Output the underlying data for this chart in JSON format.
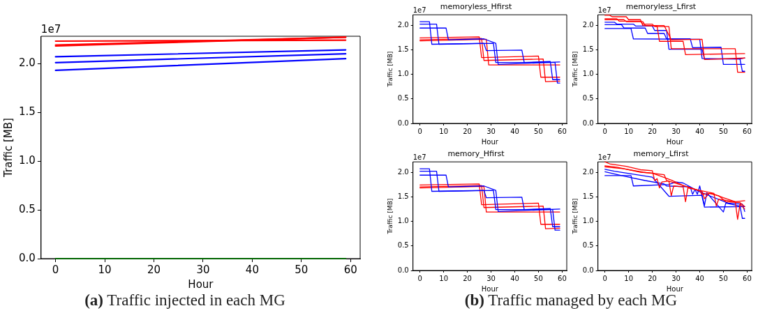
{
  "chart_data": [
    {
      "type": "line",
      "xlabel": "Hour",
      "ylabel": "Traffic [MB]",
      "annotations": [
        "1e7",
        "(a) Traffic injected in each MG"
      ],
      "xlim": [
        -2.95,
        61.95
      ],
      "ylim": [
        0,
        2.28
      ],
      "xticks": [
        0,
        10,
        20,
        30,
        40,
        50,
        60
      ],
      "yticks": [
        {
          "value": 0,
          "label": "0.0"
        },
        {
          "value": 0.5,
          "label": "0.5"
        },
        {
          "value": 1,
          "label": "1.0"
        },
        {
          "value": 1.5,
          "label": "1.5"
        },
        {
          "value": 2,
          "label": "2.0"
        }
      ],
      "x": [
        0,
        59
      ],
      "series": [
        {
          "color": "#ff0000",
          "values": [
            2.23,
            2.24
          ]
        },
        {
          "color": "#ff0000",
          "values": [
            2.19,
            2.27
          ]
        },
        {
          "color": "#ff0000",
          "values": [
            2.18,
            2.27
          ]
        },
        {
          "color": "#0000ff",
          "values": [
            2.07,
            2.14
          ]
        },
        {
          "color": "#0000ff",
          "values": [
            2.01,
            2.1
          ]
        },
        {
          "color": "#0000ff",
          "values": [
            1.93,
            2.05
          ]
        },
        {
          "color": "#006400",
          "values": [
            0,
            0
          ]
        }
      ]
    },
    {
      "type": "line",
      "title": "memoryless_Hfirst",
      "xlabel": "Hour",
      "ylabel": "Traffic [MB]",
      "annotations": [
        "1e7",
        "(b) Traffic managed by each MG"
      ],
      "xlim": [
        -2.95,
        61.95
      ],
      "ylim": [
        0,
        2.21
      ],
      "xticks": [
        0,
        10,
        20,
        30,
        40,
        50,
        60
      ],
      "yticks": [
        {
          "value": 0,
          "label": "0.0"
        },
        {
          "value": 0.5,
          "label": "0.5"
        },
        {
          "value": 1,
          "label": "1.0"
        },
        {
          "value": 1.5,
          "label": "1.5"
        },
        {
          "value": 2,
          "label": "2.0"
        }
      ],
      "series": [
        {
          "color": "#0000ff",
          "x": [
            0,
            4,
            5,
            27,
            28,
            43,
            44,
            55,
            56,
            59
          ],
          "values": [
            2.07,
            2.07,
            1.61,
            1.63,
            1.48,
            1.49,
            1.24,
            1.26,
            0.89,
            0.89
          ]
        },
        {
          "color": "#0000ff",
          "x": [
            0,
            7,
            8,
            31,
            32,
            57,
            58,
            59
          ],
          "values": [
            2.02,
            2.02,
            1.61,
            1.63,
            1.24,
            1.24,
            0.82,
            0.82
          ]
        },
        {
          "color": "#0000ff",
          "x": [
            0,
            11,
            12,
            27,
            32,
            33,
            59
          ],
          "values": [
            1.94,
            1.94,
            1.7,
            1.72,
            1.63,
            1.2,
            1.25
          ]
        },
        {
          "color": "#ff0000",
          "x": [
            0,
            25,
            26,
            50,
            51,
            59
          ],
          "values": [
            1.74,
            1.76,
            1.34,
            1.37,
            0.94,
            0.94
          ]
        },
        {
          "color": "#ff0000",
          "x": [
            0,
            26,
            27,
            52,
            53,
            59
          ],
          "values": [
            1.7,
            1.73,
            1.28,
            1.31,
            0.85,
            0.86
          ]
        },
        {
          "color": "#ff0000",
          "x": [
            0,
            28,
            29,
            59
          ],
          "values": [
            1.68,
            1.71,
            1.19,
            1.19
          ]
        }
      ]
    },
    {
      "type": "line",
      "title": "memoryless_Lfirst",
      "xlabel": "Hour",
      "ylabel": "Traffic [MB]",
      "annotations": [
        "1e7"
      ],
      "xlim": [
        -2.95,
        61.95
      ],
      "ylim": [
        0,
        2.21
      ],
      "xticks": [
        0,
        10,
        20,
        30,
        40,
        50,
        60
      ],
      "yticks": [
        {
          "value": 0,
          "label": "0.0"
        },
        {
          "value": 0.5,
          "label": "0.5"
        },
        {
          "value": 1,
          "label": "1.0"
        },
        {
          "value": 1.5,
          "label": "1.5"
        },
        {
          "value": 2,
          "label": "2.0"
        }
      ],
      "series": [
        {
          "color": "#ff0000",
          "x": [
            0,
            2,
            3,
            9,
            10,
            15,
            16,
            22,
            23,
            33,
            34,
            59
          ],
          "values": [
            2.2,
            2.2,
            2.17,
            2.17,
            2.11,
            2.11,
            1.99,
            1.98,
            1.67,
            1.67,
            1.4,
            1.42
          ]
        },
        {
          "color": "#ff0000",
          "x": [
            0,
            5,
            6,
            15,
            16,
            20,
            21,
            27,
            28,
            55,
            56,
            59
          ],
          "values": [
            2.13,
            2.13,
            2.08,
            2.08,
            2.02,
            2.02,
            1.97,
            1.97,
            1.52,
            1.52,
            1.04,
            1.04
          ]
        },
        {
          "color": "#ff0000",
          "x": [
            0,
            8,
            9,
            16,
            17,
            25,
            28,
            41,
            42,
            59
          ],
          "values": [
            2.11,
            2.11,
            2.07,
            2.07,
            1.99,
            1.99,
            1.7,
            1.71,
            1.3,
            1.33
          ]
        },
        {
          "color": "#0000ff",
          "x": [
            0,
            4,
            5,
            12,
            13,
            20,
            21,
            26,
            27,
            41,
            42,
            57,
            58,
            59
          ],
          "values": [
            2.06,
            2.06,
            2.02,
            2.02,
            1.98,
            1.98,
            1.89,
            1.89,
            1.51,
            1.51,
            1.31,
            1.31,
            1.06,
            1.06
          ]
        },
        {
          "color": "#0000ff",
          "x": [
            0,
            7,
            8,
            17,
            18,
            25,
            26,
            36,
            37,
            49,
            50,
            59
          ],
          "values": [
            2.01,
            2.01,
            1.94,
            1.94,
            1.83,
            1.83,
            1.72,
            1.72,
            1.54,
            1.55,
            1.2,
            1.2
          ]
        },
        {
          "color": "#0000ff",
          "x": [
            0,
            11,
            12,
            40,
            41,
            57,
            59
          ],
          "values": [
            1.93,
            1.93,
            1.72,
            1.71,
            1.32,
            1.31,
            1.33
          ]
        }
      ]
    },
    {
      "type": "line",
      "title": "memory_Hfirst",
      "xlabel": "Hour",
      "ylabel": "Traffic [MB]",
      "annotations": [
        "1e7"
      ],
      "xlim": [
        -2.95,
        61.95
      ],
      "ylim": [
        0,
        2.21
      ],
      "xticks": [
        0,
        10,
        20,
        30,
        40,
        50,
        60
      ],
      "yticks": [
        {
          "value": 0,
          "label": "0.0"
        },
        {
          "value": 0.5,
          "label": "0.5"
        },
        {
          "value": 1,
          "label": "1.0"
        },
        {
          "value": 1.5,
          "label": "1.5"
        },
        {
          "value": 2,
          "label": "2.0"
        }
      ],
      "series": [
        {
          "color": "#0000ff",
          "x": [
            0,
            4,
            5,
            27,
            28,
            43,
            44,
            55,
            56,
            59
          ],
          "values": [
            2.07,
            2.07,
            1.61,
            1.63,
            1.48,
            1.49,
            1.24,
            1.26,
            0.89,
            0.89
          ]
        },
        {
          "color": "#0000ff",
          "x": [
            0,
            7,
            8,
            31,
            32,
            56,
            57,
            59
          ],
          "values": [
            2.02,
            2.02,
            1.61,
            1.63,
            1.24,
            1.24,
            0.82,
            0.82
          ]
        },
        {
          "color": "#0000ff",
          "x": [
            0,
            11,
            12,
            27,
            32,
            33,
            59
          ],
          "values": [
            1.94,
            1.94,
            1.7,
            1.72,
            1.63,
            1.2,
            1.25
          ]
        },
        {
          "color": "#ff0000",
          "x": [
            0,
            25,
            26,
            50,
            51,
            59
          ],
          "values": [
            1.74,
            1.76,
            1.34,
            1.37,
            0.94,
            0.94
          ]
        },
        {
          "color": "#ff0000",
          "x": [
            0,
            26,
            27,
            52,
            53,
            59
          ],
          "values": [
            1.7,
            1.73,
            1.28,
            1.31,
            0.85,
            0.86
          ]
        },
        {
          "color": "#ff0000",
          "x": [
            0,
            27,
            28,
            59
          ],
          "values": [
            1.68,
            1.71,
            1.19,
            1.19
          ]
        }
      ]
    },
    {
      "type": "line",
      "title": "memory_Lfirst",
      "xlabel": "Hour",
      "ylabel": "Traffic [MB]",
      "annotations": [
        "1e7"
      ],
      "xlim": [
        -2.95,
        61.95
      ],
      "ylim": [
        0,
        2.21
      ],
      "xticks": [
        0,
        10,
        20,
        30,
        40,
        50,
        60
      ],
      "yticks": [
        {
          "value": 0,
          "label": "0.0"
        },
        {
          "value": 0.5,
          "label": "0.5"
        },
        {
          "value": 1,
          "label": "1.0"
        },
        {
          "value": 1.5,
          "label": "1.5"
        },
        {
          "value": 2,
          "label": "2.0"
        }
      ],
      "series": [
        {
          "color": "#ff0000",
          "x": [
            0,
            2,
            9,
            15,
            20,
            21,
            22,
            23,
            24,
            27,
            28,
            29,
            33,
            34,
            35,
            40,
            46,
            47,
            48,
            55,
            56,
            57,
            59
          ],
          "values": [
            2.21,
            2.17,
            2.12,
            2.05,
            2.03,
            1.83,
            1.87,
            1.68,
            1.8,
            1.82,
            1.52,
            1.72,
            1.7,
            1.4,
            1.68,
            1.63,
            1.57,
            1.31,
            1.45,
            1.4,
            1.04,
            1.35,
            1.25
          ]
        },
        {
          "color": "#ff0000",
          "x": [
            0,
            5,
            15,
            20,
            28,
            33,
            40,
            41,
            45,
            50,
            55,
            59
          ],
          "values": [
            2.13,
            2.1,
            2.0,
            1.98,
            1.84,
            1.73,
            1.62,
            1.55,
            1.57,
            1.48,
            1.4,
            1.42
          ]
        },
        {
          "color": "#ff0000",
          "x": [
            0,
            8,
            16,
            25,
            26,
            33,
            41,
            42,
            44,
            48,
            51,
            57,
            59
          ],
          "values": [
            2.11,
            2.07,
            2.0,
            1.95,
            1.83,
            1.73,
            1.61,
            1.46,
            1.57,
            1.52,
            1.4,
            1.38,
            1.3
          ]
        },
        {
          "color": "#0000ff",
          "x": [
            0,
            4,
            12,
            20,
            27,
            41,
            42,
            43,
            50,
            51,
            57,
            58,
            59
          ],
          "values": [
            2.06,
            2.02,
            1.96,
            1.9,
            1.51,
            1.53,
            1.32,
            1.58,
            1.19,
            1.37,
            1.31,
            1.06,
            1.06
          ]
        },
        {
          "color": "#0000ff",
          "x": [
            0,
            7,
            17,
            25,
            26,
            36,
            37,
            38,
            39,
            40,
            42,
            59
          ],
          "values": [
            2.01,
            1.93,
            1.83,
            1.76,
            1.72,
            1.7,
            1.55,
            1.65,
            1.55,
            1.72,
            1.29,
            1.3
          ]
        },
        {
          "color": "#0000ff",
          "x": [
            0,
            11,
            12,
            27,
            30,
            33,
            40,
            52,
            58,
            59
          ],
          "values": [
            1.93,
            1.93,
            1.72,
            1.75,
            1.8,
            1.78,
            1.6,
            1.37,
            1.35,
            1.2
          ]
        }
      ]
    }
  ]
}
